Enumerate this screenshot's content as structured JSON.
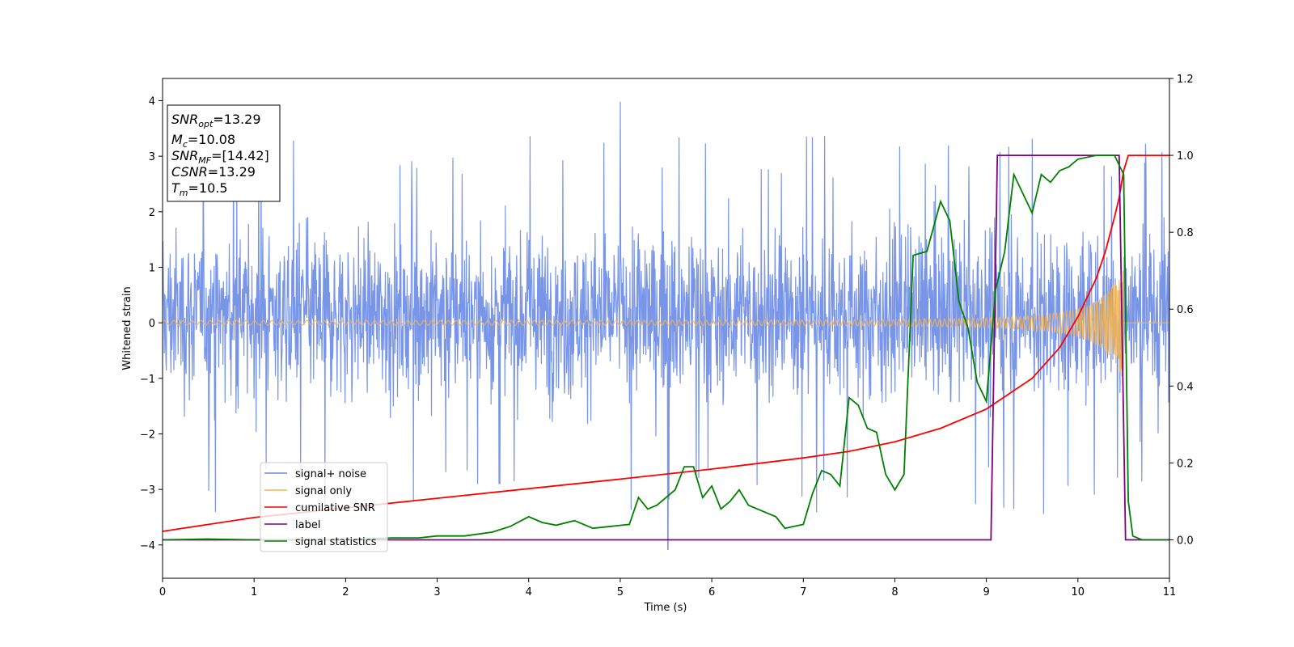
{
  "chart_data": {
    "type": "line",
    "xlabel": "Time (s)",
    "ylabel": "Whitened strain",
    "xlim": [
      0,
      11
    ],
    "ylim_left": [
      -4.6,
      4.4
    ],
    "ylim_right": [
      -0.1,
      1.2
    ],
    "x_ticks": [
      "0",
      "1",
      "2",
      "3",
      "4",
      "5",
      "6",
      "7",
      "8",
      "9",
      "10",
      "11"
    ],
    "y_ticks_left": [
      "4",
      "3",
      "2",
      "1",
      "0",
      "−1",
      "−2",
      "−3",
      "−4"
    ],
    "y_ticks_right": [
      "1.2",
      "1.0",
      "0.8",
      "0.6",
      "0.4",
      "0.2",
      "0.0"
    ],
    "info_box": {
      "snr_opt": {
        "main": "SNR",
        "sub": "opt",
        "value": "=13.29"
      },
      "mc": {
        "main": "M",
        "sub": "c",
        "value": "=10.08"
      },
      "snr_mf": {
        "main": "SNR",
        "sub": "MF",
        "value": "=[14.42]"
      },
      "csnr": {
        "main": "CSNR",
        "value": "=13.29"
      },
      "tm": {
        "main": "T",
        "sub": "m",
        "value": "=10.5"
      }
    },
    "legend": {
      "position": "lower-left",
      "entries": [
        "signal+ noise",
        "signal only",
        "cumilative SNR",
        "label",
        "signal statistics"
      ]
    },
    "colors": {
      "signal_noise": "#6a8ae6",
      "signal_only": "#f5b550",
      "cumulative_snr": "#ff0000",
      "label": "#800080",
      "signal_statistics": "#008000"
    },
    "series": [
      {
        "name": "signal+ noise",
        "axis": "left",
        "description_values": {
          "typical_range": [
            -2.6,
            2.8
          ],
          "max_spike": 3.98,
          "min_spike": -4.08,
          "max_spike_time": 5.0,
          "min_spike_time": 5.52
        }
      },
      {
        "name": "signal only",
        "axis": "left",
        "chirp": {
          "start_amplitude": 0.04,
          "end_amplitude": 1.05,
          "merger_time": 10.5,
          "end_time": 11
        }
      },
      {
        "name": "cumilative SNR",
        "axis": "right",
        "x": [
          0,
          1,
          2,
          3,
          4,
          5,
          6,
          7,
          7.5,
          8,
          8.5,
          9,
          9.5,
          9.8,
          10,
          10.2,
          10.3,
          10.4,
          10.45,
          10.5,
          10.55,
          11
        ],
        "y": [
          0.022,
          0.058,
          0.083,
          0.108,
          0.133,
          0.158,
          0.184,
          0.213,
          0.23,
          0.255,
          0.29,
          0.34,
          0.42,
          0.5,
          0.58,
          0.68,
          0.75,
          0.84,
          0.89,
          0.96,
          1.0,
          1.0
        ]
      },
      {
        "name": "label",
        "axis": "right",
        "x": [
          0,
          9.05,
          9.12,
          10.45,
          10.52,
          11
        ],
        "y": [
          0,
          0,
          1,
          1,
          0,
          0
        ]
      },
      {
        "name": "signal statistics",
        "axis": "right",
        "x": [
          0,
          0.5,
          1,
          2,
          2.5,
          2.8,
          3,
          3.3,
          3.6,
          3.8,
          4.0,
          4.15,
          4.3,
          4.5,
          4.7,
          4.9,
          5.1,
          5.2,
          5.3,
          5.4,
          5.6,
          5.7,
          5.8,
          5.9,
          6.0,
          6.1,
          6.2,
          6.3,
          6.4,
          6.5,
          6.7,
          6.8,
          7.0,
          7.1,
          7.2,
          7.3,
          7.4,
          7.5,
          7.6,
          7.7,
          7.8,
          7.9,
          8.0,
          8.1,
          8.2,
          8.35,
          8.5,
          8.6,
          8.7,
          8.8,
          8.9,
          9.0,
          9.1,
          9.2,
          9.3,
          9.4,
          9.5,
          9.6,
          9.7,
          9.8,
          9.9,
          10.0,
          10.2,
          10.4,
          10.5,
          10.55,
          10.6,
          10.7,
          11
        ],
        "y": [
          0.0,
          0.002,
          0.0,
          0.0,
          0.005,
          0.005,
          0.01,
          0.01,
          0.02,
          0.035,
          0.06,
          0.045,
          0.038,
          0.05,
          0.03,
          0.035,
          0.04,
          0.11,
          0.08,
          0.09,
          0.13,
          0.19,
          0.19,
          0.11,
          0.14,
          0.08,
          0.1,
          0.13,
          0.09,
          0.08,
          0.06,
          0.03,
          0.04,
          0.12,
          0.18,
          0.17,
          0.14,
          0.37,
          0.35,
          0.29,
          0.28,
          0.17,
          0.13,
          0.17,
          0.74,
          0.75,
          0.88,
          0.83,
          0.62,
          0.55,
          0.41,
          0.36,
          0.65,
          0.75,
          0.95,
          0.9,
          0.85,
          0.95,
          0.93,
          0.96,
          0.97,
          0.99,
          1.0,
          1.0,
          0.95,
          0.1,
          0.01,
          0.0,
          0.0
        ]
      }
    ]
  }
}
